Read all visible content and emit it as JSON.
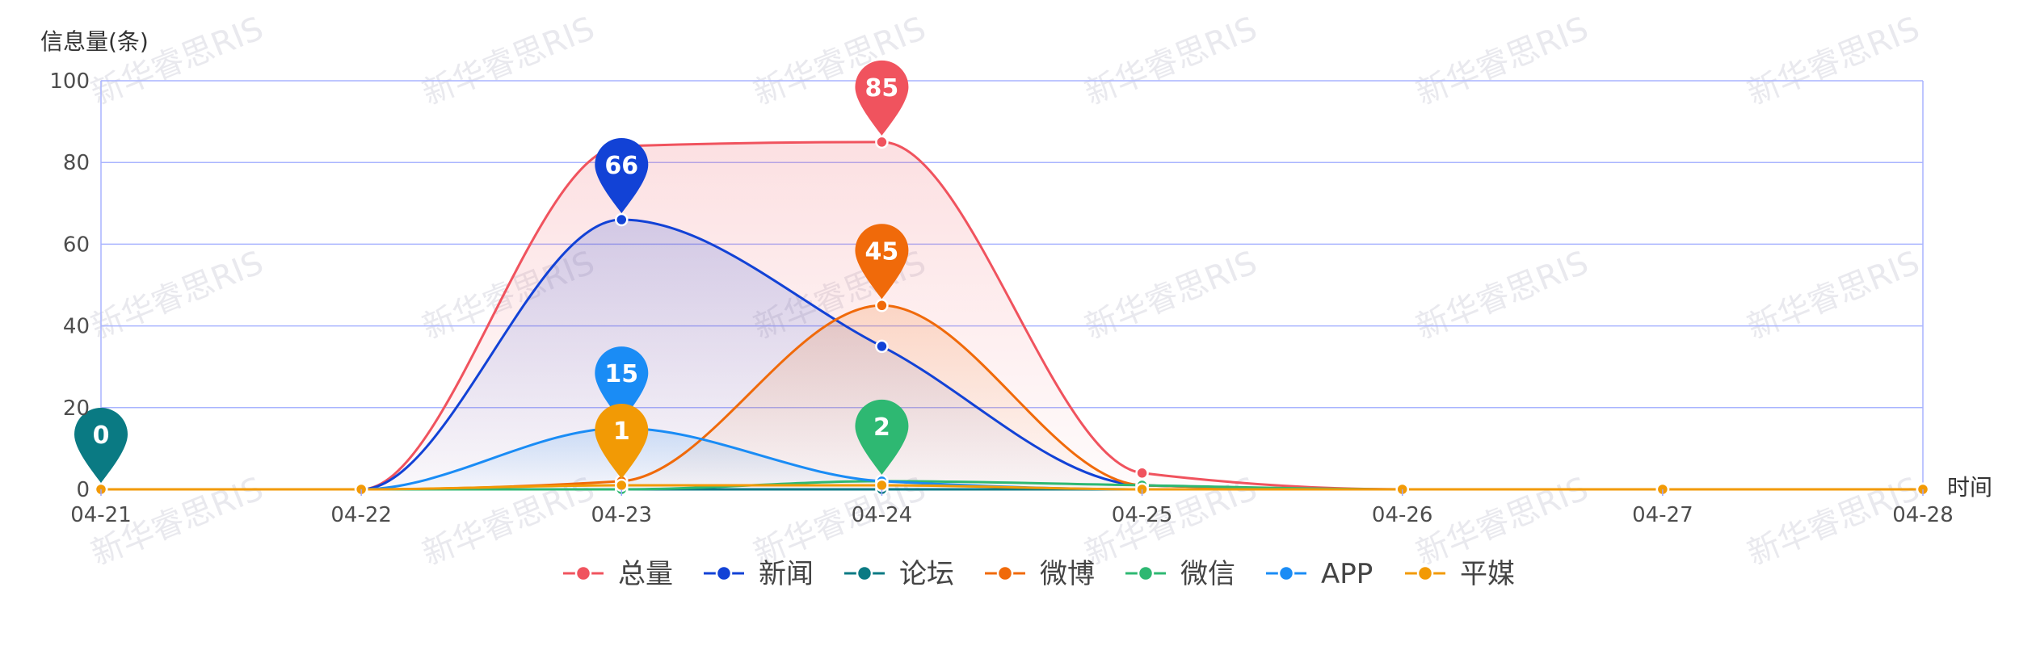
{
  "chart_data": {
    "type": "line",
    "ylabel": "信息量(条)",
    "xlabel": "时间",
    "ylim": [
      0,
      100
    ],
    "yticks": [
      0,
      20,
      40,
      60,
      80,
      100
    ],
    "categories": [
      "04-21",
      "04-22",
      "04-23",
      "04-24",
      "04-25",
      "04-26",
      "04-27",
      "04-28"
    ],
    "grid": true,
    "legend_position": "bottom",
    "series": [
      {
        "name": "总量",
        "color": "#f0535e",
        "area": true,
        "values": [
          0,
          0,
          84,
          85,
          4,
          0,
          0,
          0
        ],
        "peak_label": {
          "index": 3,
          "value": "85"
        }
      },
      {
        "name": "新闻",
        "color": "#1242d6",
        "area": true,
        "values": [
          0,
          0,
          66,
          35,
          1,
          0,
          0,
          0
        ],
        "peak_label": {
          "index": 2,
          "value": "66"
        }
      },
      {
        "name": "论坛",
        "color": "#0a7a83",
        "area": false,
        "values": [
          0,
          0,
          0,
          0,
          0,
          0,
          0,
          0
        ],
        "peak_label": {
          "index": 0,
          "value": "0"
        }
      },
      {
        "name": "微博",
        "color": "#f06a0a",
        "area": true,
        "values": [
          0,
          0,
          2,
          45,
          1,
          0,
          0,
          0
        ],
        "peak_label": {
          "index": 3,
          "value": "45"
        }
      },
      {
        "name": "微信",
        "color": "#2eb872",
        "area": false,
        "values": [
          0,
          0,
          0,
          2,
          1,
          0,
          0,
          0
        ],
        "peak_label": {
          "index": 3,
          "value": "2"
        }
      },
      {
        "name": "APP",
        "color": "#1a8cf5",
        "area": true,
        "values": [
          0,
          0,
          15,
          2,
          0,
          0,
          0,
          0
        ],
        "peak_label": {
          "index": 2,
          "value": "15"
        }
      },
      {
        "name": "平媒",
        "color": "#f29a05",
        "area": false,
        "values": [
          0,
          0,
          1,
          1,
          0,
          0,
          0,
          0
        ],
        "peak_label": {
          "index": 2,
          "value": "1"
        }
      }
    ]
  },
  "watermark": "新华睿思RIS"
}
